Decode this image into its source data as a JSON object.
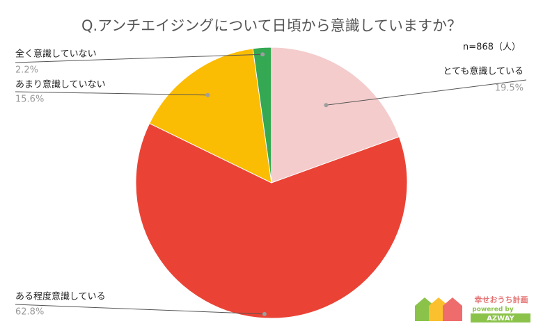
{
  "chart_data": {
    "type": "pie",
    "title": "Q.アンチエイジングについて日頃から意識していますか？",
    "subtitle": "n=868（人）",
    "categories": [
      "とても意識している",
      "ある程度意識している",
      "あまり意識していない",
      "全く意識していない"
    ],
    "values": [
      19.5,
      62.8,
      15.6,
      2.2
    ],
    "value_labels": [
      "19.5%",
      "62.8%",
      "15.6%",
      "2.2%"
    ],
    "colors": [
      "#f4cccc",
      "#ea4335",
      "#fbbc04",
      "#34a853"
    ],
    "brand": {
      "name": "幸せおうち計画",
      "powered_by": "powered by",
      "company": "AZWAY"
    }
  }
}
